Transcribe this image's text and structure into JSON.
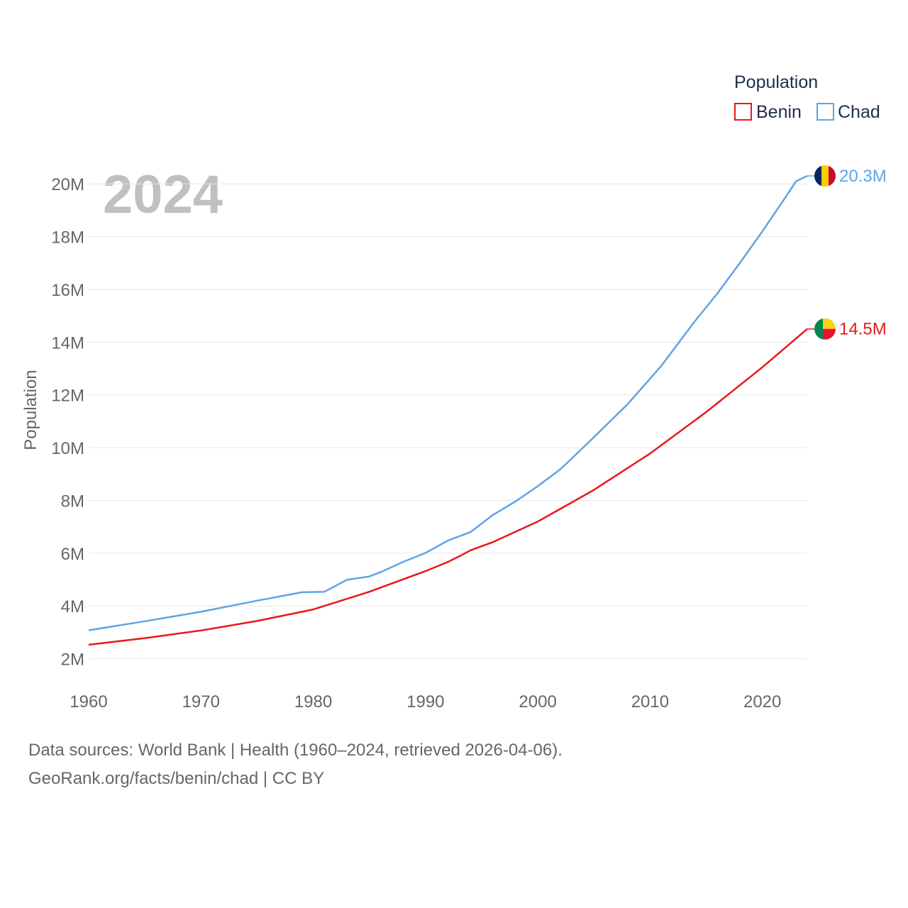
{
  "chart_data": {
    "type": "line",
    "legend_title": "Population",
    "year_label": "2024",
    "ylabel": "Population",
    "ylim": [
      0,
      21000000
    ],
    "xlim": [
      1960,
      2024
    ],
    "y_ticks": [
      {
        "value": 2000000,
        "label": "2M"
      },
      {
        "value": 4000000,
        "label": "4M"
      },
      {
        "value": 6000000,
        "label": "6M"
      },
      {
        "value": 8000000,
        "label": "8M"
      },
      {
        "value": 10000000,
        "label": "10M"
      },
      {
        "value": 12000000,
        "label": "12M"
      },
      {
        "value": 14000000,
        "label": "14M"
      },
      {
        "value": 16000000,
        "label": "16M"
      },
      {
        "value": 18000000,
        "label": "18M"
      },
      {
        "value": 20000000,
        "label": "20M"
      }
    ],
    "x_ticks": [
      {
        "value": 1960,
        "label": "1960"
      },
      {
        "value": 1970,
        "label": "1970"
      },
      {
        "value": 1980,
        "label": "1980"
      },
      {
        "value": 1990,
        "label": "1990"
      },
      {
        "value": 2000,
        "label": "2000"
      },
      {
        "value": 2010,
        "label": "2010"
      },
      {
        "value": 2020,
        "label": "2020"
      }
    ],
    "series": [
      {
        "name": "Chad",
        "color": "#5fa4e6",
        "end_label": "20.3M",
        "flag": "chad-flag",
        "points": [
          [
            1960,
            3080000
          ],
          [
            1965,
            3420000
          ],
          [
            1970,
            3780000
          ],
          [
            1975,
            4200000
          ],
          [
            1979,
            4520000
          ],
          [
            1981,
            4540000
          ],
          [
            1983,
            4990000
          ],
          [
            1985,
            5120000
          ],
          [
            1986,
            5280000
          ],
          [
            1988,
            5670000
          ],
          [
            1990,
            6010000
          ],
          [
            1992,
            6480000
          ],
          [
            1994,
            6800000
          ],
          [
            1996,
            7450000
          ],
          [
            1998,
            7960000
          ],
          [
            2000,
            8540000
          ],
          [
            2002,
            9180000
          ],
          [
            2003,
            9580000
          ],
          [
            2005,
            10400000
          ],
          [
            2008,
            11650000
          ],
          [
            2011,
            13100000
          ],
          [
            2014,
            14800000
          ],
          [
            2016,
            15850000
          ],
          [
            2018,
            17000000
          ],
          [
            2020,
            18200000
          ],
          [
            2022,
            19450000
          ],
          [
            2023,
            20100000
          ],
          [
            2024,
            20300000
          ]
        ]
      },
      {
        "name": "Benin",
        "color": "#e8171c",
        "end_label": "14.5M",
        "flag": "benin-flag",
        "points": [
          [
            1960,
            2530000
          ],
          [
            1965,
            2780000
          ],
          [
            1970,
            3070000
          ],
          [
            1975,
            3430000
          ],
          [
            1980,
            3870000
          ],
          [
            1985,
            4540000
          ],
          [
            1990,
            5320000
          ],
          [
            1992,
            5670000
          ],
          [
            1993,
            5880000
          ],
          [
            1994,
            6110000
          ],
          [
            1996,
            6420000
          ],
          [
            2000,
            7200000
          ],
          [
            2005,
            8400000
          ],
          [
            2010,
            9780000
          ],
          [
            2015,
            11350000
          ],
          [
            2020,
            13050000
          ],
          [
            2024,
            14500000
          ]
        ]
      }
    ]
  },
  "footer": {
    "line1": "Data sources: World Bank | Health (1960–2024, retrieved 2026-04-06).",
    "line2": "GeoRank.org/facts/benin/chad | CC BY"
  }
}
